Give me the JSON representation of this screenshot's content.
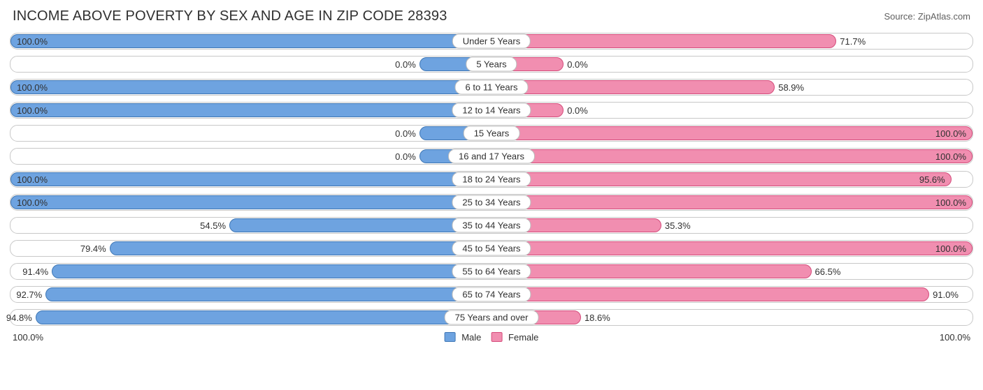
{
  "title": "INCOME ABOVE POVERTY BY SEX AND AGE IN ZIP CODE 28393",
  "source": "Source: ZipAtlas.com",
  "colors": {
    "male_fill": "#6ea3e0",
    "male_border": "#3f77b5",
    "female_fill": "#f18eb0",
    "female_border": "#d54d7c",
    "row_border": "#c8c8c8",
    "text": "#303030",
    "background": "#ffffff"
  },
  "min_bar_pct": 15,
  "rows": [
    {
      "age": "Under 5 Years",
      "male": 100.0,
      "female": 71.7
    },
    {
      "age": "5 Years",
      "male": 0.0,
      "female": 0.0
    },
    {
      "age": "6 to 11 Years",
      "male": 100.0,
      "female": 58.9
    },
    {
      "age": "12 to 14 Years",
      "male": 100.0,
      "female": 0.0
    },
    {
      "age": "15 Years",
      "male": 0.0,
      "female": 100.0
    },
    {
      "age": "16 and 17 Years",
      "male": 0.0,
      "female": 100.0
    },
    {
      "age": "18 to 24 Years",
      "male": 100.0,
      "female": 95.6
    },
    {
      "age": "25 to 34 Years",
      "male": 100.0,
      "female": 100.0
    },
    {
      "age": "35 to 44 Years",
      "male": 54.5,
      "female": 35.3
    },
    {
      "age": "45 to 54 Years",
      "male": 79.4,
      "female": 100.0
    },
    {
      "age": "55 to 64 Years",
      "male": 91.4,
      "female": 66.5
    },
    {
      "age": "65 to 74 Years",
      "male": 92.7,
      "female": 91.0
    },
    {
      "age": "75 Years and over",
      "male": 94.8,
      "female": 18.6
    }
  ],
  "axis": {
    "left": "100.0%",
    "right": "100.0%"
  },
  "legend": {
    "male": "Male",
    "female": "Female"
  }
}
